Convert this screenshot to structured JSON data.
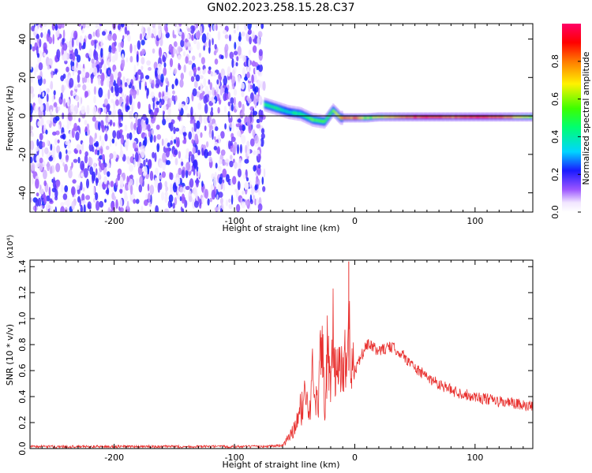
{
  "title": "GN02.2023.258.15.28.C37",
  "chart_data": [
    {
      "type": "heatmap",
      "xlabel": "Height of straight line (km)",
      "ylabel": "Frequency (Hz)",
      "xlim": [
        -270,
        148
      ],
      "ylim": [
        -50,
        48
      ],
      "xticks": [
        -200,
        -100,
        0,
        100
      ],
      "xtick_labels": [
        "-200",
        "-100",
        "0",
        "100"
      ],
      "yticks": [
        -40,
        -20,
        0,
        20,
        40
      ],
      "ytick_labels": [
        "-40",
        "-20",
        "0",
        "20",
        "40"
      ],
      "noise_region_x": [
        -270,
        -75
      ],
      "ridge": {
        "x": [
          -75,
          -65,
          -55,
          -45,
          -35,
          -25,
          -18,
          -12,
          -5,
          0,
          10,
          20,
          40,
          60,
          80,
          100,
          120,
          148
        ],
        "y": [
          6,
          4,
          2,
          1,
          -2,
          -3,
          3,
          -1,
          -1,
          -1,
          -1,
          -0.5,
          -0.5,
          -0.5,
          -0.5,
          -0.5,
          -0.5,
          -0.5
        ],
        "amplitude": [
          0.5,
          0.45,
          0.4,
          0.45,
          0.55,
          0.5,
          0.6,
          0.75,
          0.8,
          0.8,
          0.6,
          0.65,
          0.8,
          0.9,
          0.8,
          0.9,
          0.85,
          0.6
        ]
      },
      "colorbar": {
        "label": "Normalized spectral amplitude",
        "range": [
          0,
          1
        ],
        "ticks": [
          0,
          0.2,
          0.4,
          0.6,
          0.8
        ],
        "tick_labels": [
          "0.0",
          "0.2",
          "0.4",
          "0.6",
          "0.8"
        ]
      }
    },
    {
      "type": "line",
      "xlabel": "Height of straight line (km)",
      "ylabel": "SNR (10 * v/v)",
      "scale_label": "(x10⁴)",
      "xlim": [
        -270,
        148
      ],
      "ylim": [
        0,
        1.45
      ],
      "xticks": [
        -200,
        -100,
        0,
        100
      ],
      "xtick_labels": [
        "-200",
        "-100",
        "0",
        "100"
      ],
      "yticks": [
        0,
        0.2,
        0.4,
        0.6,
        0.8,
        1.0,
        1.2,
        1.4
      ],
      "ytick_labels": [
        "0.0",
        "0.2",
        "0.4",
        "0.6",
        "0.8",
        "1.0",
        "1.2",
        "1.4"
      ],
      "series": [
        {
          "color": "#e8302e",
          "x": [
            -270,
            -200,
            -100,
            -80,
            -60,
            -50,
            -45,
            -40,
            -38,
            -35,
            -30,
            -28,
            -25,
            -23,
            -20,
            -18,
            -15,
            -12,
            -10,
            -8,
            -6,
            -5,
            -4,
            -2,
            0,
            5,
            10,
            15,
            20,
            25,
            30,
            35,
            40,
            50,
            60,
            70,
            80,
            90,
            100,
            110,
            120,
            130,
            140,
            148
          ],
          "y": [
            0.01,
            0.01,
            0.01,
            0.01,
            0.02,
            0.15,
            0.3,
            0.45,
            0.2,
            0.58,
            0.35,
            0.98,
            0.3,
            0.75,
            0.4,
            0.85,
            0.55,
            0.7,
            0.5,
            0.85,
            0.6,
            1.44,
            0.9,
            0.55,
            0.6,
            0.7,
            0.8,
            0.78,
            0.75,
            0.77,
            0.78,
            0.76,
            0.72,
            0.62,
            0.55,
            0.5,
            0.45,
            0.42,
            0.4,
            0.38,
            0.36,
            0.35,
            0.33,
            0.32
          ]
        }
      ]
    }
  ]
}
